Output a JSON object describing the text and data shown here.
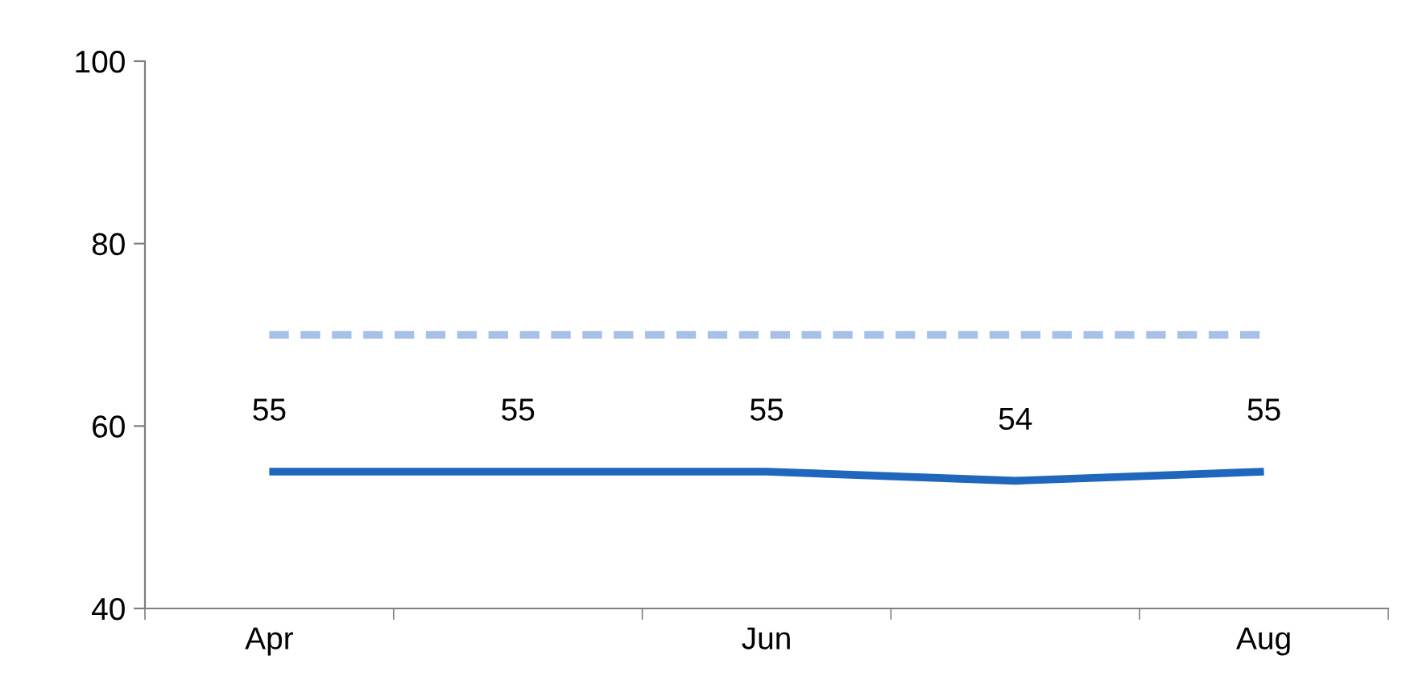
{
  "chart_data": {
    "type": "line",
    "categories": [
      "Apr",
      null,
      "Jun",
      null,
      "Aug"
    ],
    "series": [
      {
        "color": "#1f66bd",
        "values": [
          55,
          55,
          55,
          54,
          55
        ],
        "line_style": "solid",
        "value_labels": [
          "55",
          "55",
          "55",
          "54",
          "55"
        ]
      },
      {
        "color": "#a6c0e8",
        "values": [
          70,
          70,
          70,
          70,
          70
        ],
        "line_style": "dashed"
      }
    ],
    "ylim": [
      40,
      100
    ],
    "yticks": [
      40,
      60,
      80,
      100
    ],
    "grid": false,
    "legend": false,
    "marker": "none"
  }
}
